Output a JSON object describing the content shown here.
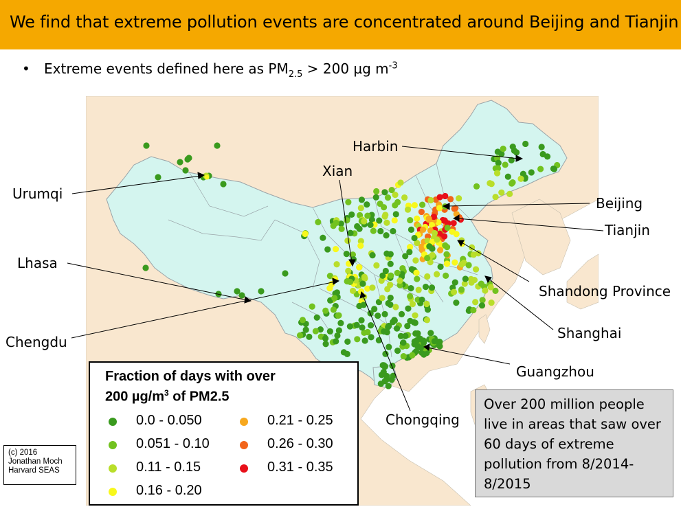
{
  "header": {
    "title": "We find that extreme pollution events are concentrated around Beijing and Tianjin"
  },
  "bullet": {
    "prefix": "Extreme events defined here as PM",
    "subscript": "2.5",
    "middle": " > 200 µg m",
    "superscript": "-3"
  },
  "map": {
    "colors": {
      "ocean": "#ffffff",
      "land_outside": "#f9e7cf",
      "china": "#d4f5ef",
      "border": "#9aa4a8"
    },
    "callouts": [
      {
        "id": "harbin",
        "label": "Harbin"
      },
      {
        "id": "xian",
        "label": "Xian"
      },
      {
        "id": "urumqi",
        "label": "Urumqi"
      },
      {
        "id": "beijing",
        "label": "Beijing"
      },
      {
        "id": "tianjin",
        "label": "Tianjin"
      },
      {
        "id": "lhasa",
        "label": "Lhasa"
      },
      {
        "id": "shandong",
        "label": "Shandong Province"
      },
      {
        "id": "shanghai",
        "label": "Shanghai"
      },
      {
        "id": "chengdu",
        "label": "Chengdu"
      },
      {
        "id": "guangzhou",
        "label": "Guangzhou"
      },
      {
        "id": "chongqing",
        "label": "Chongqing"
      }
    ]
  },
  "legend": {
    "title_line1": "Fraction of days with over",
    "title_line2_prefix": "200 µg/m",
    "title_line2_sup": "3",
    "title_line2_suffix": " of PM2.5",
    "items": [
      {
        "label": "0.0 - 0.050",
        "color": "#3a9a1e"
      },
      {
        "label": "0.051 - 0.10",
        "color": "#72c21f"
      },
      {
        "label": "0.11 - 0.15",
        "color": "#b9de2a"
      },
      {
        "label": "0.16 - 0.20",
        "color": "#f8f81c"
      },
      {
        "label": "0.21 - 0.25",
        "color": "#f7a81e"
      },
      {
        "label": "0.26 - 0.30",
        "color": "#f2641a"
      },
      {
        "label": "0.31 - 0.35",
        "color": "#e8101a"
      }
    ]
  },
  "credit": {
    "line1": "(c) 2016",
    "line2": "Jonathan Moch",
    "line3": "Harvard SEAS"
  },
  "infobox": {
    "text": "Over 200 million people live in areas that saw over 60 days of extreme pollution from 8/2014-8/2015"
  }
}
